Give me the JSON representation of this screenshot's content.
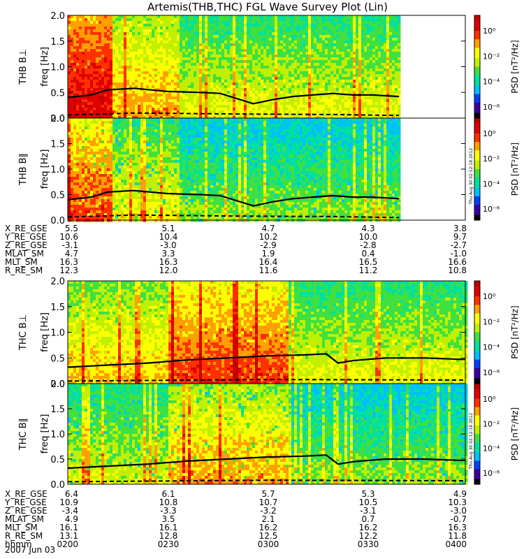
{
  "title": "Artemis(THB,THC) FGL Wave Survey Plot (Lin)",
  "colorbar": {
    "label": "PSD [nT²/Hz]",
    "ticks": [
      "10⁰",
      "10⁻²",
      "10⁻⁴",
      "10⁻⁶"
    ],
    "colors": [
      "#000000",
      "#3a00a0",
      "#0040ff",
      "#00c0ff",
      "#00e0a0",
      "#40e040",
      "#c0f000",
      "#ffff00",
      "#ffa000",
      "#ff3000",
      "#e00000",
      "#c00000"
    ]
  },
  "stamp": "Thu Aug 30 02:12:18 2012",
  "date": "2007 Jun 03",
  "chart_data": [
    {
      "type": "heatmap",
      "panel": "THB B⊥",
      "ylabel": "freq [Hz]",
      "ylim": [
        0,
        2.0
      ],
      "yticks": [
        "0.0",
        "0.5",
        "1.0",
        "1.5",
        "2.0"
      ],
      "data_extent_hhmm": [
        "0200",
        "0340"
      ],
      "spectrum_level": "high",
      "line_solid": [
        [
          0.0,
          0.4
        ],
        [
          0.07,
          0.45
        ],
        [
          0.12,
          0.55
        ],
        [
          0.2,
          0.58
        ],
        [
          0.3,
          0.52
        ],
        [
          0.4,
          0.5
        ],
        [
          0.46,
          0.48
        ],
        [
          0.5,
          0.4
        ],
        [
          0.56,
          0.28
        ],
        [
          0.62,
          0.36
        ],
        [
          0.68,
          0.42
        ],
        [
          0.74,
          0.45
        ],
        [
          0.8,
          0.48
        ],
        [
          0.86,
          0.45
        ],
        [
          0.92,
          0.45
        ],
        [
          1.0,
          0.42
        ]
      ],
      "line_dashed": [
        [
          0.0,
          0.06
        ],
        [
          0.2,
          0.1
        ],
        [
          0.5,
          0.08
        ],
        [
          0.8,
          0.07
        ],
        [
          1.0,
          0.05
        ]
      ]
    },
    {
      "type": "heatmap",
      "panel": "THB B∥",
      "ylabel": "freq [Hz]",
      "ylim": [
        0,
        2.0
      ],
      "yticks": [
        "0.0",
        "0.5",
        "1.0",
        "1.5",
        "2.0"
      ],
      "data_extent_hhmm": [
        "0200",
        "0340"
      ],
      "spectrum_level": "medium",
      "line_solid": [
        [
          0.0,
          0.4
        ],
        [
          0.07,
          0.45
        ],
        [
          0.12,
          0.55
        ],
        [
          0.2,
          0.58
        ],
        [
          0.3,
          0.52
        ],
        [
          0.4,
          0.5
        ],
        [
          0.46,
          0.48
        ],
        [
          0.5,
          0.4
        ],
        [
          0.56,
          0.28
        ],
        [
          0.62,
          0.36
        ],
        [
          0.68,
          0.42
        ],
        [
          0.74,
          0.45
        ],
        [
          0.8,
          0.48
        ],
        [
          0.86,
          0.45
        ],
        [
          0.92,
          0.45
        ],
        [
          1.0,
          0.42
        ]
      ],
      "line_dashed": [
        [
          0.0,
          0.06
        ],
        [
          0.2,
          0.1
        ],
        [
          0.5,
          0.08
        ],
        [
          0.8,
          0.07
        ],
        [
          1.0,
          0.05
        ]
      ]
    },
    {
      "type": "heatmap",
      "panel": "THC B⊥",
      "ylabel": "freq [Hz]",
      "ylim": [
        0,
        2.0
      ],
      "yticks": [
        "0.0",
        "0.5",
        "1.0",
        "1.5",
        "2.0"
      ],
      "data_extent_hhmm": [
        "0200",
        "0400"
      ],
      "spectrum_level": "high",
      "line_solid": [
        [
          0.0,
          0.32
        ],
        [
          0.1,
          0.36
        ],
        [
          0.2,
          0.4
        ],
        [
          0.3,
          0.46
        ],
        [
          0.4,
          0.5
        ],
        [
          0.5,
          0.54
        ],
        [
          0.6,
          0.56
        ],
        [
          0.65,
          0.58
        ],
        [
          0.68,
          0.4
        ],
        [
          0.72,
          0.45
        ],
        [
          0.8,
          0.5
        ],
        [
          0.9,
          0.5
        ],
        [
          1.0,
          0.47
        ]
      ],
      "line_dashed": [
        [
          0.0,
          0.05
        ],
        [
          0.5,
          0.08
        ],
        [
          1.0,
          0.07
        ]
      ]
    },
    {
      "type": "heatmap",
      "panel": "THC B∥",
      "ylabel": "freq [Hz]",
      "ylim": [
        0,
        2.0
      ],
      "yticks": [
        "0.0",
        "0.5",
        "1.0",
        "1.5",
        "2.0"
      ],
      "data_extent_hhmm": [
        "0200",
        "0400"
      ],
      "spectrum_level": "medium",
      "line_solid": [
        [
          0.0,
          0.32
        ],
        [
          0.1,
          0.36
        ],
        [
          0.2,
          0.4
        ],
        [
          0.3,
          0.46
        ],
        [
          0.4,
          0.5
        ],
        [
          0.5,
          0.54
        ],
        [
          0.6,
          0.56
        ],
        [
          0.65,
          0.58
        ],
        [
          0.68,
          0.4
        ],
        [
          0.72,
          0.45
        ],
        [
          0.8,
          0.5
        ],
        [
          0.9,
          0.5
        ],
        [
          1.0,
          0.47
        ]
      ],
      "line_dashed": [
        [
          0.0,
          0.05
        ],
        [
          0.5,
          0.08
        ],
        [
          1.0,
          0.07
        ]
      ]
    }
  ],
  "ephemeris_thb": {
    "rows": [
      {
        "label": "X_RE_GSE",
        "values": [
          "5.5",
          "5.1",
          "4.7",
          "4.3",
          "3.8"
        ]
      },
      {
        "label": "Y_RE_GSE",
        "values": [
          "10.6",
          "10.4",
          "10.2",
          "10.0",
          "9.7"
        ]
      },
      {
        "label": "Z_RE_GSE",
        "values": [
          "-3.1",
          "-3.0",
          "-2.9",
          "-2.8",
          "-2.7"
        ]
      },
      {
        "label": "MLAT_SM",
        "values": [
          "4.7",
          "3.3",
          "1.9",
          "0.4",
          "-1.0"
        ]
      },
      {
        "label": "MLT_SM",
        "values": [
          "16.3",
          "16.3",
          "16.4",
          "16.5",
          "16.6"
        ]
      },
      {
        "label": "R_RE_SM",
        "values": [
          "12.3",
          "12.0",
          "11.6",
          "11.2",
          "10.8"
        ]
      }
    ]
  },
  "ephemeris_thc": {
    "rows": [
      {
        "label": "X_RE_GSE",
        "values": [
          "6.4",
          "6.1",
          "5.7",
          "5.3",
          "4.9"
        ]
      },
      {
        "label": "Y_RE_GSE",
        "values": [
          "10.9",
          "10.8",
          "10.7",
          "10.5",
          "10.3"
        ]
      },
      {
        "label": "Z_RE_GSE",
        "values": [
          "-3.4",
          "-3.3",
          "-3.2",
          "-3.1",
          "-3.0"
        ]
      },
      {
        "label": "MLAT_SM",
        "values": [
          "4.9",
          "3.5",
          "2.1",
          "0.7",
          "-0.7"
        ]
      },
      {
        "label": "MLT_SM",
        "values": [
          "16.1",
          "16.1",
          "16.2",
          "16.2",
          "16.3"
        ]
      },
      {
        "label": "R_RE_SM",
        "values": [
          "13.1",
          "12.8",
          "12.5",
          "12.2",
          "11.8"
        ]
      },
      {
        "label": "hhmm",
        "values": [
          "0200",
          "0230",
          "0300",
          "0330",
          "0400"
        ]
      }
    ]
  }
}
